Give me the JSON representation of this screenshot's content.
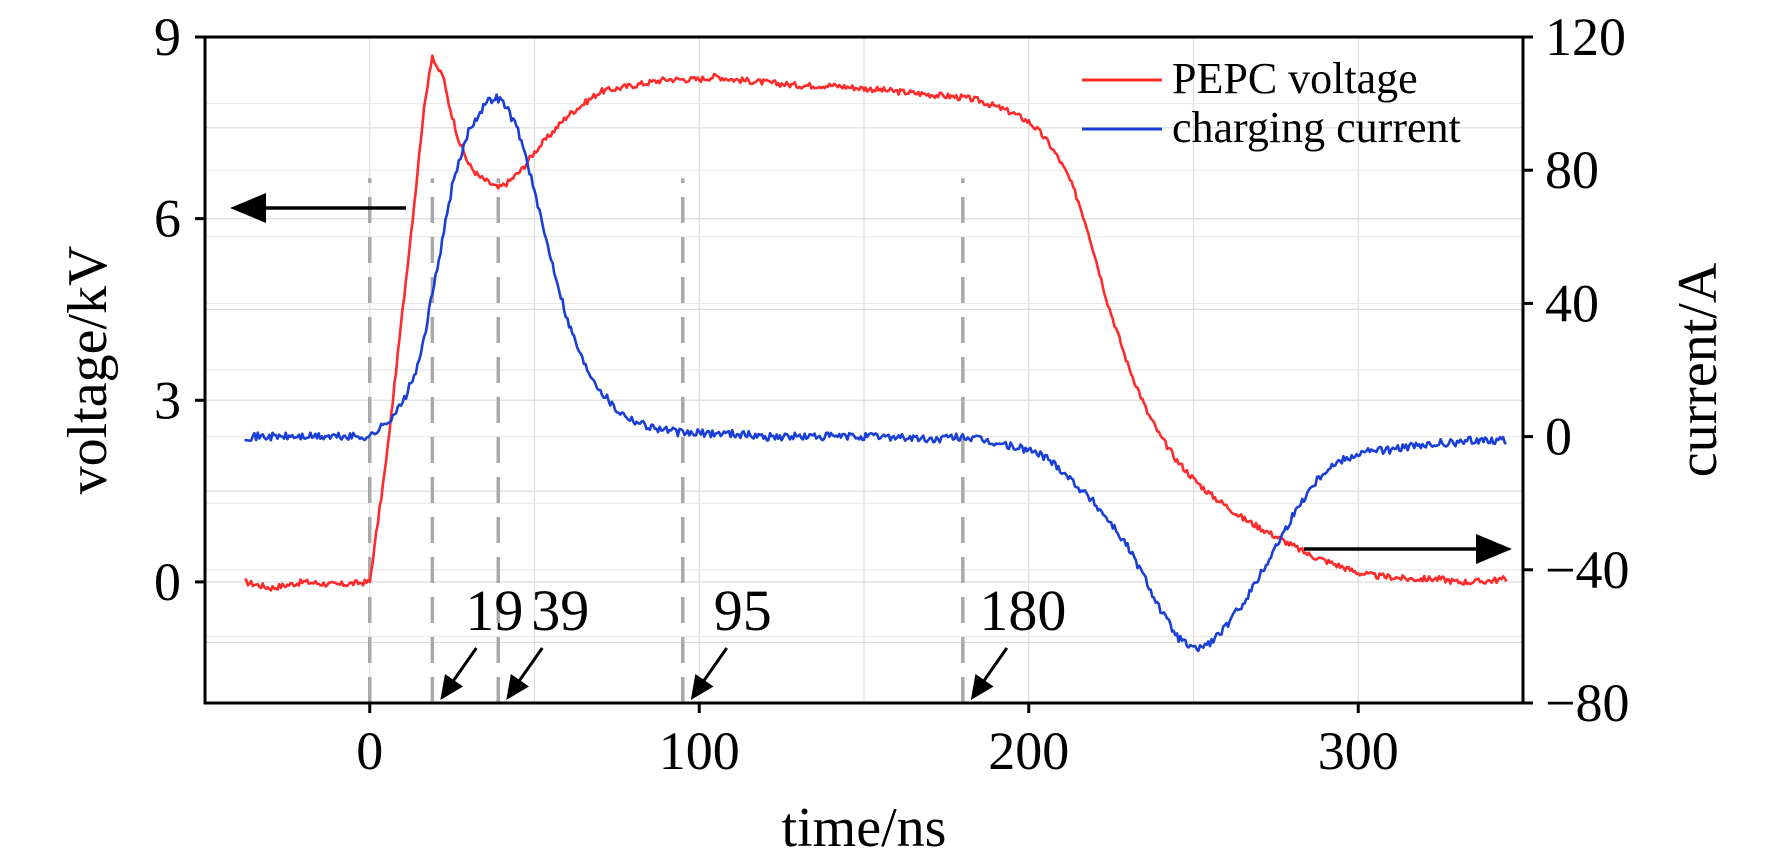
{
  "chart_data": {
    "type": "line",
    "title": "",
    "xlabel": "time/ns",
    "ylabel": "voltage/kV",
    "y2label": "current/A",
    "xlim": [
      -50,
      350
    ],
    "ylim": [
      -2,
      9
    ],
    "y2lim": [
      -80,
      120
    ],
    "xticks": [
      0,
      100,
      200,
      300
    ],
    "xtick_labels": [
      "0",
      "100",
      "200",
      "300"
    ],
    "yticks": [
      0,
      3,
      6,
      9
    ],
    "ytick_labels": [
      "0",
      "3",
      "6",
      "9"
    ],
    "y2ticks": [
      -80,
      -40,
      0,
      40,
      80,
      120
    ],
    "y2tick_labels": [
      "−80",
      "−40",
      "0",
      "40",
      "80",
      "120"
    ],
    "grid": true,
    "legend_position": "top-right",
    "series": [
      {
        "name": "PEPC voltage",
        "axis": "left",
        "color": "#ff2a2a",
        "x": [
          -38,
          -30,
          -20,
          -10,
          0,
          2,
          5,
          8,
          11,
          14,
          16,
          18,
          19,
          20,
          22,
          24,
          27,
          30,
          33,
          36,
          39,
          42,
          46,
          50,
          55,
          60,
          65,
          70,
          80,
          90,
          95,
          100,
          105,
          110,
          120,
          130,
          140,
          150,
          160,
          170,
          180,
          185,
          190,
          195,
          200,
          203,
          206,
          209,
          212,
          215,
          218,
          221,
          224,
          227,
          230,
          233,
          236,
          240,
          245,
          250,
          255,
          260,
          265,
          270,
          275,
          280,
          285,
          290,
          295,
          300,
          305,
          310,
          315,
          320,
          325,
          330,
          335,
          340,
          345
        ],
        "y": [
          0.0,
          -0.1,
          0.0,
          -0.05,
          0.0,
          0.8,
          2.0,
          3.5,
          5.0,
          6.5,
          7.6,
          8.4,
          8.7,
          8.5,
          8.4,
          7.9,
          7.3,
          6.9,
          6.7,
          6.6,
          6.5,
          6.6,
          6.8,
          7.1,
          7.4,
          7.7,
          7.9,
          8.1,
          8.2,
          8.3,
          8.3,
          8.3,
          8.35,
          8.3,
          8.25,
          8.2,
          8.2,
          8.15,
          8.1,
          8.05,
          8.0,
          7.95,
          7.85,
          7.75,
          7.6,
          7.45,
          7.25,
          7.0,
          6.7,
          6.3,
          5.8,
          5.2,
          4.6,
          4.1,
          3.6,
          3.2,
          2.8,
          2.4,
          2.0,
          1.7,
          1.45,
          1.25,
          1.05,
          0.9,
          0.75,
          0.6,
          0.45,
          0.35,
          0.25,
          0.15,
          0.1,
          0.08,
          0.05,
          0.05,
          0.05,
          0.0,
          0.0,
          0.02,
          0.05
        ]
      },
      {
        "name": "charging current",
        "axis": "right",
        "color": "#1a3fd6",
        "x": [
          -38,
          -30,
          -20,
          -10,
          0,
          5,
          10,
          15,
          20,
          25,
          30,
          35,
          38,
          40,
          42,
          45,
          48,
          52,
          56,
          60,
          65,
          70,
          75,
          80,
          85,
          90,
          95,
          100,
          110,
          120,
          130,
          140,
          150,
          160,
          170,
          180,
          185,
          190,
          195,
          200,
          205,
          210,
          215,
          220,
          225,
          230,
          235,
          240,
          245,
          250,
          255,
          260,
          265,
          270,
          275,
          280,
          285,
          290,
          295,
          300,
          305,
          310,
          315,
          320,
          325,
          330,
          335,
          340,
          345
        ],
        "y": [
          0,
          0,
          0,
          0,
          0,
          4,
          10,
          22,
          48,
          75,
          92,
          100,
          102,
          101,
          98,
          92,
          82,
          65,
          50,
          35,
          22,
          14,
          8,
          5,
          3,
          2,
          1,
          1,
          1,
          0,
          0,
          0,
          0,
          0,
          -1,
          0,
          -1,
          -2,
          -3,
          -4,
          -6,
          -10,
          -15,
          -20,
          -26,
          -33,
          -42,
          -52,
          -60,
          -64,
          -62,
          -57,
          -50,
          -42,
          -33,
          -24,
          -16,
          -10,
          -7,
          -5,
          -4,
          -4,
          -3,
          -3,
          -2,
          -2,
          -1,
          -1,
          -1
        ]
      }
    ],
    "vlines": [
      0,
      19,
      39,
      95,
      180
    ],
    "annotations": [
      {
        "label": "19",
        "x": 19
      },
      {
        "label": "39",
        "x": 39
      },
      {
        "label": "95",
        "x": 95
      },
      {
        "label": "180",
        "x": 180
      }
    ],
    "axis_arrows": [
      {
        "points_to": "left axis"
      },
      {
        "points_to": "right axis"
      }
    ]
  }
}
